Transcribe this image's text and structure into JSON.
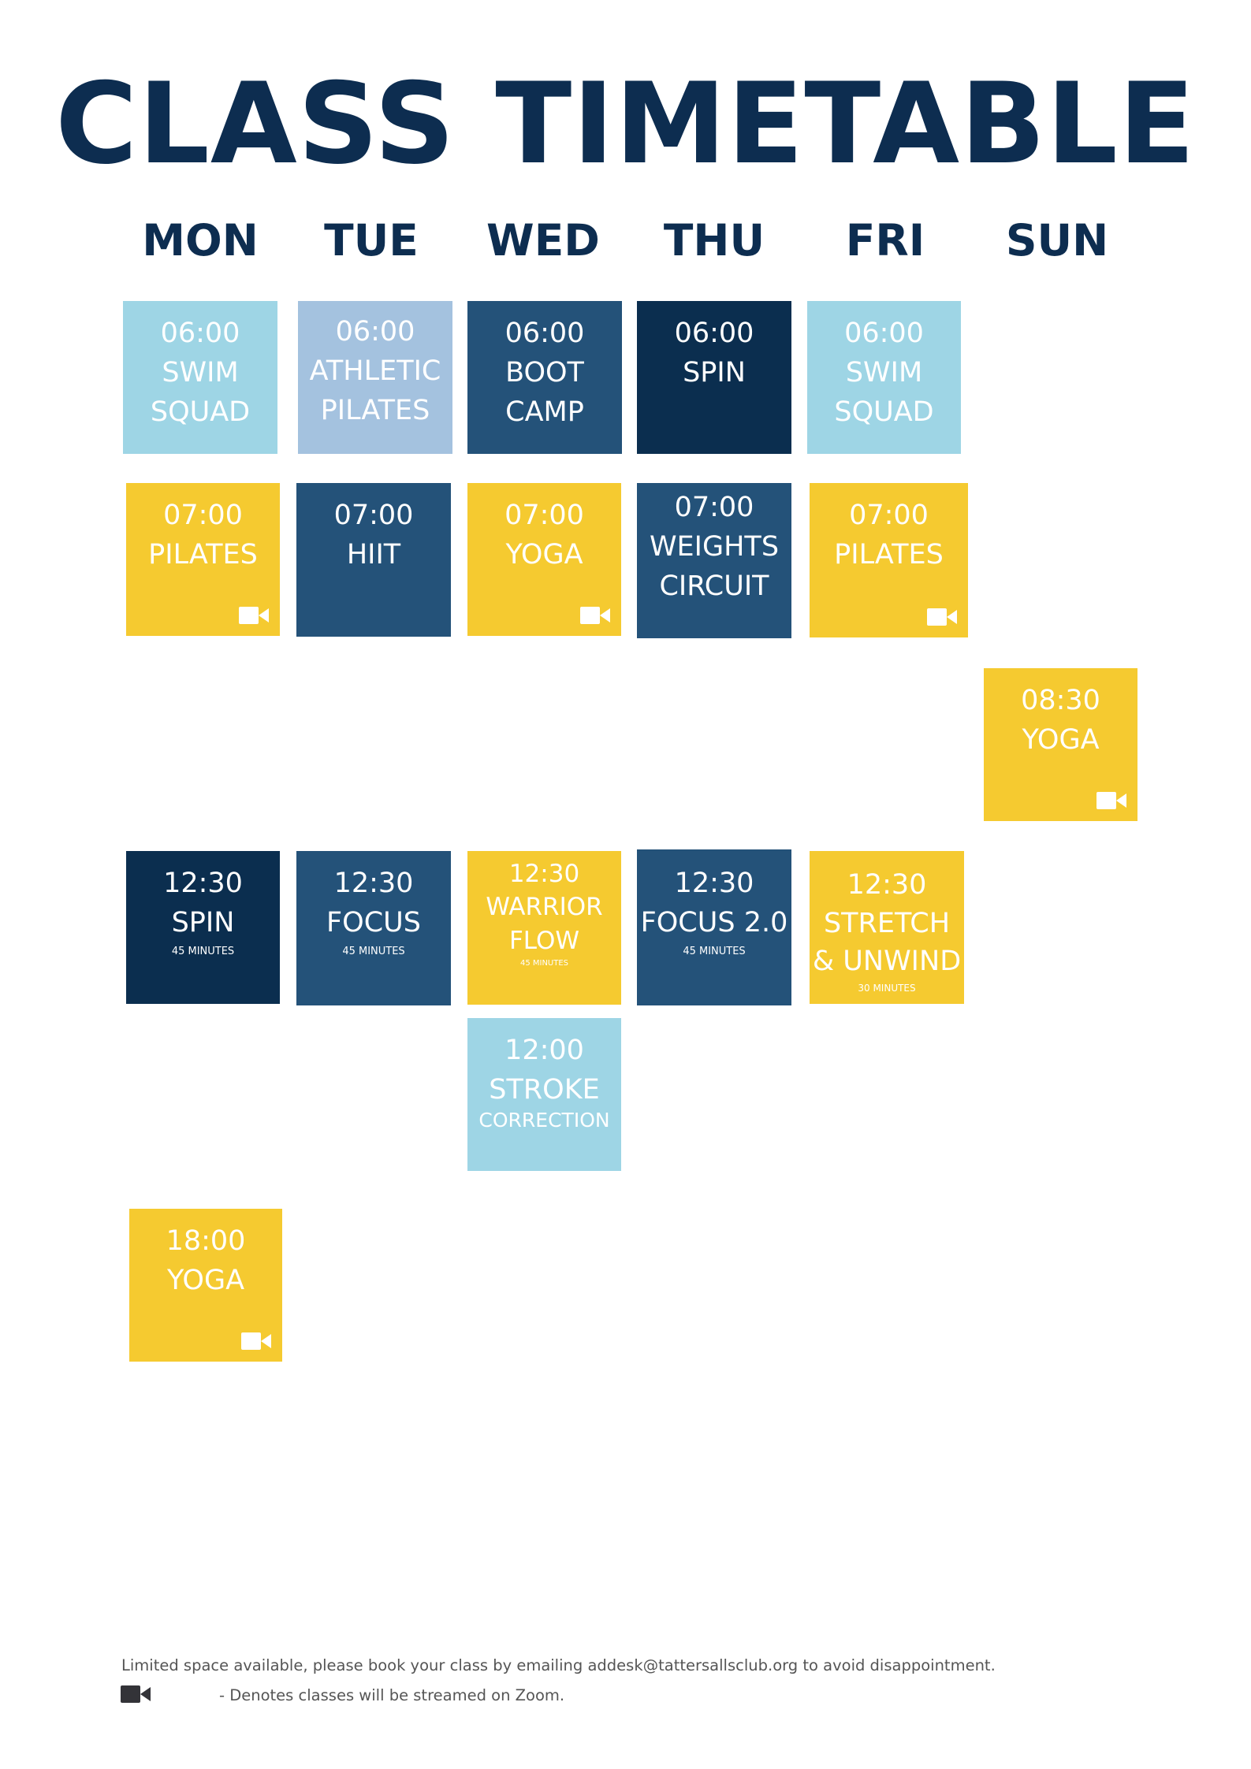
{
  "title": "CLASS TIMETABLE",
  "days": [
    "MON",
    "TUE",
    "WED",
    "THU",
    "FRI",
    "SUN"
  ],
  "colors": {
    "light_blue": "#9ed5e5",
    "steel_blue": "#a4c2df",
    "mid_blue": "#245279",
    "navy": "#0b2e4f",
    "yellow": "#f5ca30",
    "title": "#0d2d50"
  },
  "classes": [
    {
      "day": "MON",
      "time": "06:00",
      "name": "SWIM\nSQUAD",
      "color": "light_blue",
      "zoom": false
    },
    {
      "day": "TUE",
      "time": "06:00",
      "name": "ATHLETIC\nPILATES",
      "color": "steel_blue",
      "zoom": false
    },
    {
      "day": "WED",
      "time": "06:00",
      "name": "BOOT\nCAMP",
      "color": "mid_blue",
      "zoom": false
    },
    {
      "day": "THU",
      "time": "06:00",
      "name": "SPIN",
      "color": "navy",
      "zoom": false
    },
    {
      "day": "FRI",
      "time": "06:00",
      "name": "SWIM\nSQUAD",
      "color": "light_blue",
      "zoom": false
    },
    {
      "day": "MON",
      "time": "07:00",
      "name": "PILATES",
      "color": "yellow",
      "zoom": true
    },
    {
      "day": "TUE",
      "time": "07:00",
      "name": "HIIT",
      "color": "mid_blue",
      "zoom": false
    },
    {
      "day": "WED",
      "time": "07:00",
      "name": "YOGA",
      "color": "yellow",
      "zoom": true
    },
    {
      "day": "THU",
      "time": "07:00",
      "name": "WEIGHTS\nCIRCUIT",
      "color": "mid_blue",
      "zoom": false
    },
    {
      "day": "FRI",
      "time": "07:00",
      "name": "PILATES",
      "color": "yellow",
      "zoom": true
    },
    {
      "day": "SUN",
      "time": "08:30",
      "name": "YOGA",
      "color": "yellow",
      "zoom": true
    },
    {
      "day": "MON",
      "time": "12:30",
      "name": "SPIN",
      "duration": "45 MINUTES",
      "color": "navy",
      "zoom": false
    },
    {
      "day": "TUE",
      "time": "12:30",
      "name": "FOCUS",
      "duration": "45 MINUTES",
      "color": "mid_blue",
      "zoom": false
    },
    {
      "day": "WED",
      "time": "12:30",
      "name": "WARRIOR\nFLOW",
      "duration": "45 MINUTES",
      "color": "yellow",
      "zoom": false
    },
    {
      "day": "THU",
      "time": "12:30",
      "name": "FOCUS 2.0",
      "duration": "45 MINUTES",
      "color": "mid_blue",
      "zoom": false
    },
    {
      "day": "FRI",
      "time": "12:30",
      "name": "STRETCH\n& UNWIND",
      "duration": "30 MINUTES",
      "color": "yellow",
      "zoom": false
    },
    {
      "day": "WED",
      "time": "12:00",
      "name": "STROKE",
      "subtitle": "CORRECTION",
      "color": "light_blue",
      "zoom": false
    },
    {
      "day": "MON",
      "time": "18:00",
      "name": "YOGA",
      "color": "yellow",
      "zoom": true
    }
  ],
  "footer": {
    "booking_note": "Limited space available, please book your class by emailing addesk@tattersallsclub.org to avoid disappointment.",
    "legend_icon": "video-camera-icon",
    "legend_text": "- Denotes classes will be streamed on Zoom."
  }
}
